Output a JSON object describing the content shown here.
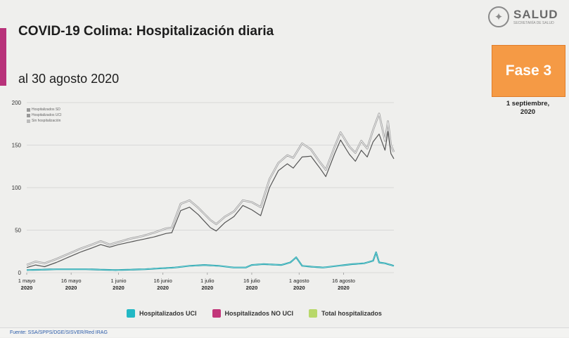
{
  "header": {
    "title": "COVID-19 Colima: Hospitalización diaria",
    "subtitle": "al 30 agosto 2020"
  },
  "logo": {
    "word": "SALUD",
    "sub": "SECRETARÍA DE SALUD"
  },
  "badge": {
    "label": "Fase 3",
    "date_line1": "1 septiembre,",
    "date_line2": "2020"
  },
  "footer": {
    "source": "Fuente: SSA/SPPS/DGE/SISVER/Red IRAG"
  },
  "colors": {
    "uci": "#22b8c4",
    "no_uci": "#c2367a",
    "total": "#b8d86a",
    "badge": "#f59a45",
    "accent_bar": "#b8327a"
  },
  "chart_data": {
    "type": "line",
    "ylim": [
      0,
      200
    ],
    "yticks": [
      "0",
      "50",
      "100",
      "150",
      "200"
    ],
    "xtick_labels": [
      [
        "1 mayo",
        "2020"
      ],
      [
        "16 mayo",
        "2020"
      ],
      [
        "1 junio",
        "2020"
      ],
      [
        "16 junio",
        "2020"
      ],
      [
        "1 julio",
        "2020"
      ],
      [
        "16 julio",
        "2020"
      ],
      [
        "1 agosto",
        "2020"
      ],
      [
        "16 agosto",
        "2020"
      ]
    ],
    "xtick_days": [
      0,
      15,
      31,
      46,
      61,
      76,
      92,
      107
    ],
    "n_days": 123,
    "inner_legend": [
      "Hospitalizados SD",
      "Hospitalizados UCI",
      "Sin hospitalización"
    ],
    "legend": [
      "Hospitalizados UCI",
      "Hospitalizados NO UCI",
      "Total hospitalizados"
    ],
    "anchors_total": [
      [
        0,
        9
      ],
      [
        3,
        13
      ],
      [
        6,
        11
      ],
      [
        10,
        16
      ],
      [
        14,
        22
      ],
      [
        18,
        28
      ],
      [
        22,
        33
      ],
      [
        25,
        37
      ],
      [
        28,
        33
      ],
      [
        31,
        36
      ],
      [
        35,
        40
      ],
      [
        39,
        43
      ],
      [
        43,
        47
      ],
      [
        47,
        52
      ],
      [
        49,
        53
      ],
      [
        52,
        81
      ],
      [
        55,
        85
      ],
      [
        58,
        76
      ],
      [
        62,
        62
      ],
      [
        64,
        57
      ],
      [
        67,
        66
      ],
      [
        70,
        72
      ],
      [
        73,
        85
      ],
      [
        76,
        83
      ],
      [
        79,
        77
      ],
      [
        82,
        110
      ],
      [
        85,
        129
      ],
      [
        88,
        138
      ],
      [
        90,
        135
      ],
      [
        93,
        152
      ],
      [
        96,
        145
      ],
      [
        99,
        130
      ],
      [
        101,
        121
      ],
      [
        104,
        148
      ],
      [
        106,
        165
      ],
      [
        109,
        148
      ],
      [
        111,
        141
      ],
      [
        113,
        155
      ],
      [
        115,
        146
      ],
      [
        117,
        168
      ],
      [
        119,
        187
      ],
      [
        121,
        155
      ],
      [
        122,
        178
      ],
      [
        123,
        150
      ],
      [
        124,
        142
      ]
    ],
    "anchors_uci": [
      [
        0,
        3
      ],
      [
        10,
        4
      ],
      [
        20,
        4
      ],
      [
        30,
        3
      ],
      [
        40,
        4
      ],
      [
        50,
        6
      ],
      [
        55,
        8
      ],
      [
        60,
        9
      ],
      [
        65,
        8
      ],
      [
        70,
        6
      ],
      [
        74,
        6
      ],
      [
        76,
        9
      ],
      [
        80,
        10
      ],
      [
        86,
        9
      ],
      [
        89,
        12
      ],
      [
        91,
        18
      ],
      [
        93,
        8
      ],
      [
        96,
        7
      ],
      [
        100,
        6
      ],
      [
        105,
        8
      ],
      [
        110,
        10
      ],
      [
        114,
        11
      ],
      [
        117,
        14
      ],
      [
        118,
        24
      ],
      [
        119,
        12
      ],
      [
        121,
        11
      ],
      [
        124,
        8
      ]
    ],
    "anchors_no_uci": [
      [
        0,
        6
      ],
      [
        3,
        9
      ],
      [
        6,
        7
      ],
      [
        10,
        12
      ],
      [
        14,
        18
      ],
      [
        18,
        24
      ],
      [
        22,
        29
      ],
      [
        25,
        33
      ],
      [
        28,
        30
      ],
      [
        31,
        33
      ],
      [
        35,
        36
      ],
      [
        39,
        39
      ],
      [
        43,
        42
      ],
      [
        47,
        46
      ],
      [
        49,
        47
      ],
      [
        52,
        73
      ],
      [
        55,
        77
      ],
      [
        58,
        68
      ],
      [
        62,
        53
      ],
      [
        64,
        49
      ],
      [
        67,
        59
      ],
      [
        70,
        66
      ],
      [
        73,
        79
      ],
      [
        76,
        74
      ],
      [
        79,
        67
      ],
      [
        82,
        100
      ],
      [
        85,
        120
      ],
      [
        88,
        128
      ],
      [
        90,
        123
      ],
      [
        93,
        136
      ],
      [
        96,
        137
      ],
      [
        99,
        123
      ],
      [
        101,
        113
      ],
      [
        104,
        140
      ],
      [
        106,
        156
      ],
      [
        109,
        139
      ],
      [
        111,
        131
      ],
      [
        113,
        144
      ],
      [
        115,
        136
      ],
      [
        117,
        154
      ],
      [
        119,
        163
      ],
      [
        121,
        144
      ],
      [
        122,
        166
      ],
      [
        123,
        140
      ],
      [
        124,
        134
      ]
    ]
  }
}
